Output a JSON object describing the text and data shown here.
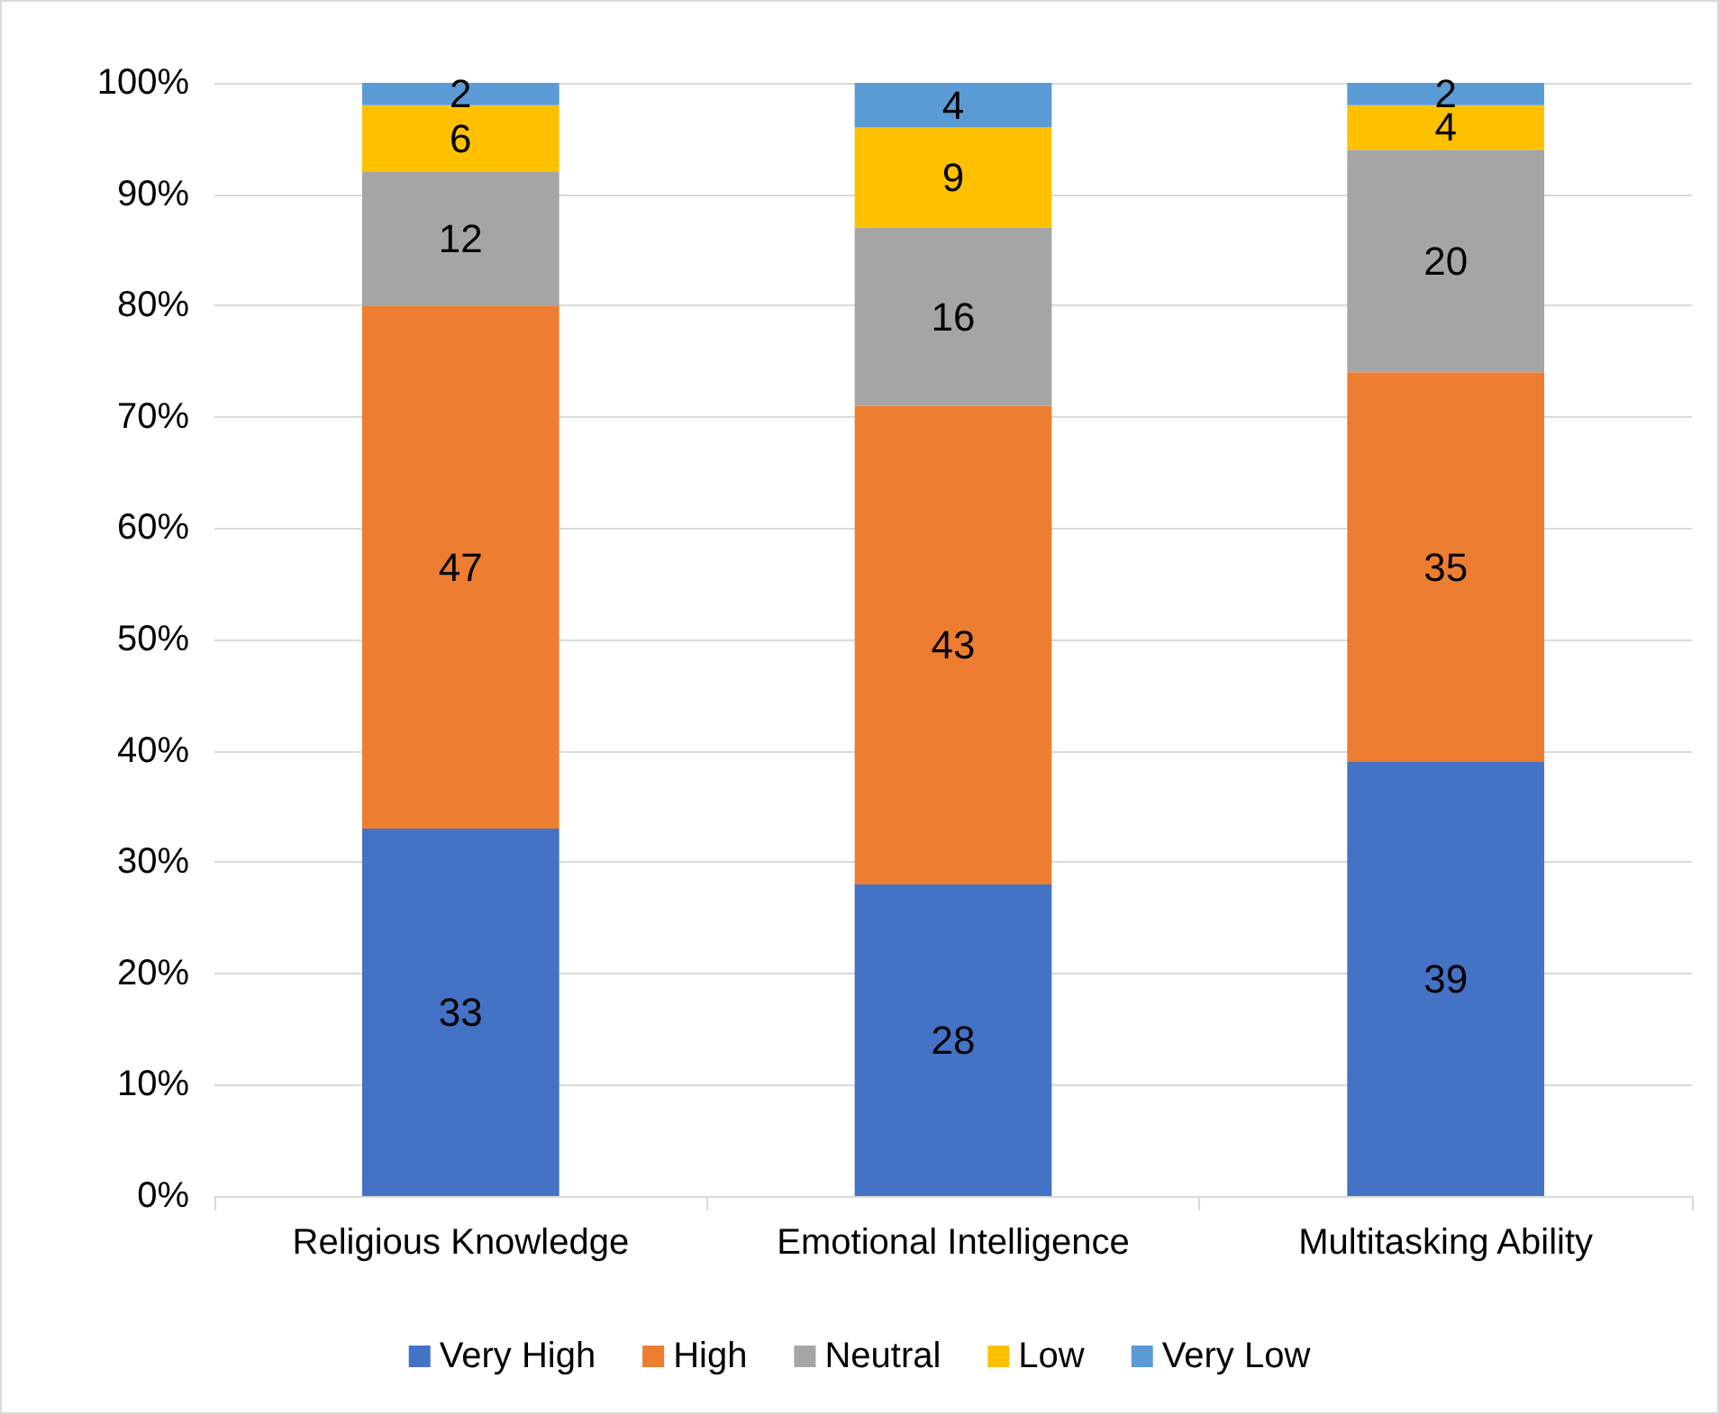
{
  "chart_data": {
    "type": "bar",
    "stacked": true,
    "data_labels": true,
    "grid": "y",
    "legend": "bottom",
    "categories": [
      "Religious Knowledge",
      "Emotional Intelligence",
      "Multitasking Ability"
    ],
    "series": [
      {
        "name": "Very High",
        "color": "#4472c4",
        "values": [
          33,
          28,
          39
        ]
      },
      {
        "name": "High",
        "color": "#ed7d31",
        "values": [
          47,
          43,
          35
        ]
      },
      {
        "name": "Neutral",
        "color": "#a5a5a5",
        "values": [
          12,
          16,
          20
        ]
      },
      {
        "name": "Low",
        "color": "#ffc000",
        "values": [
          6,
          9,
          4
        ]
      },
      {
        "name": "Very Low",
        "color": "#5b9bd5",
        "values": [
          2,
          4,
          2
        ]
      }
    ],
    "ylim": [
      0,
      100
    ],
    "yticks": [
      {
        "value": 0,
        "label": "0%"
      },
      {
        "value": 10,
        "label": "10%"
      },
      {
        "value": 20,
        "label": "20%"
      },
      {
        "value": 30,
        "label": "30%"
      },
      {
        "value": 40,
        "label": "40%"
      },
      {
        "value": 50,
        "label": "50%"
      },
      {
        "value": 60,
        "label": "60%"
      },
      {
        "value": 70,
        "label": "70%"
      },
      {
        "value": 80,
        "label": "80%"
      },
      {
        "value": 90,
        "label": "90%"
      },
      {
        "value": 100,
        "label": "100%"
      }
    ]
  }
}
